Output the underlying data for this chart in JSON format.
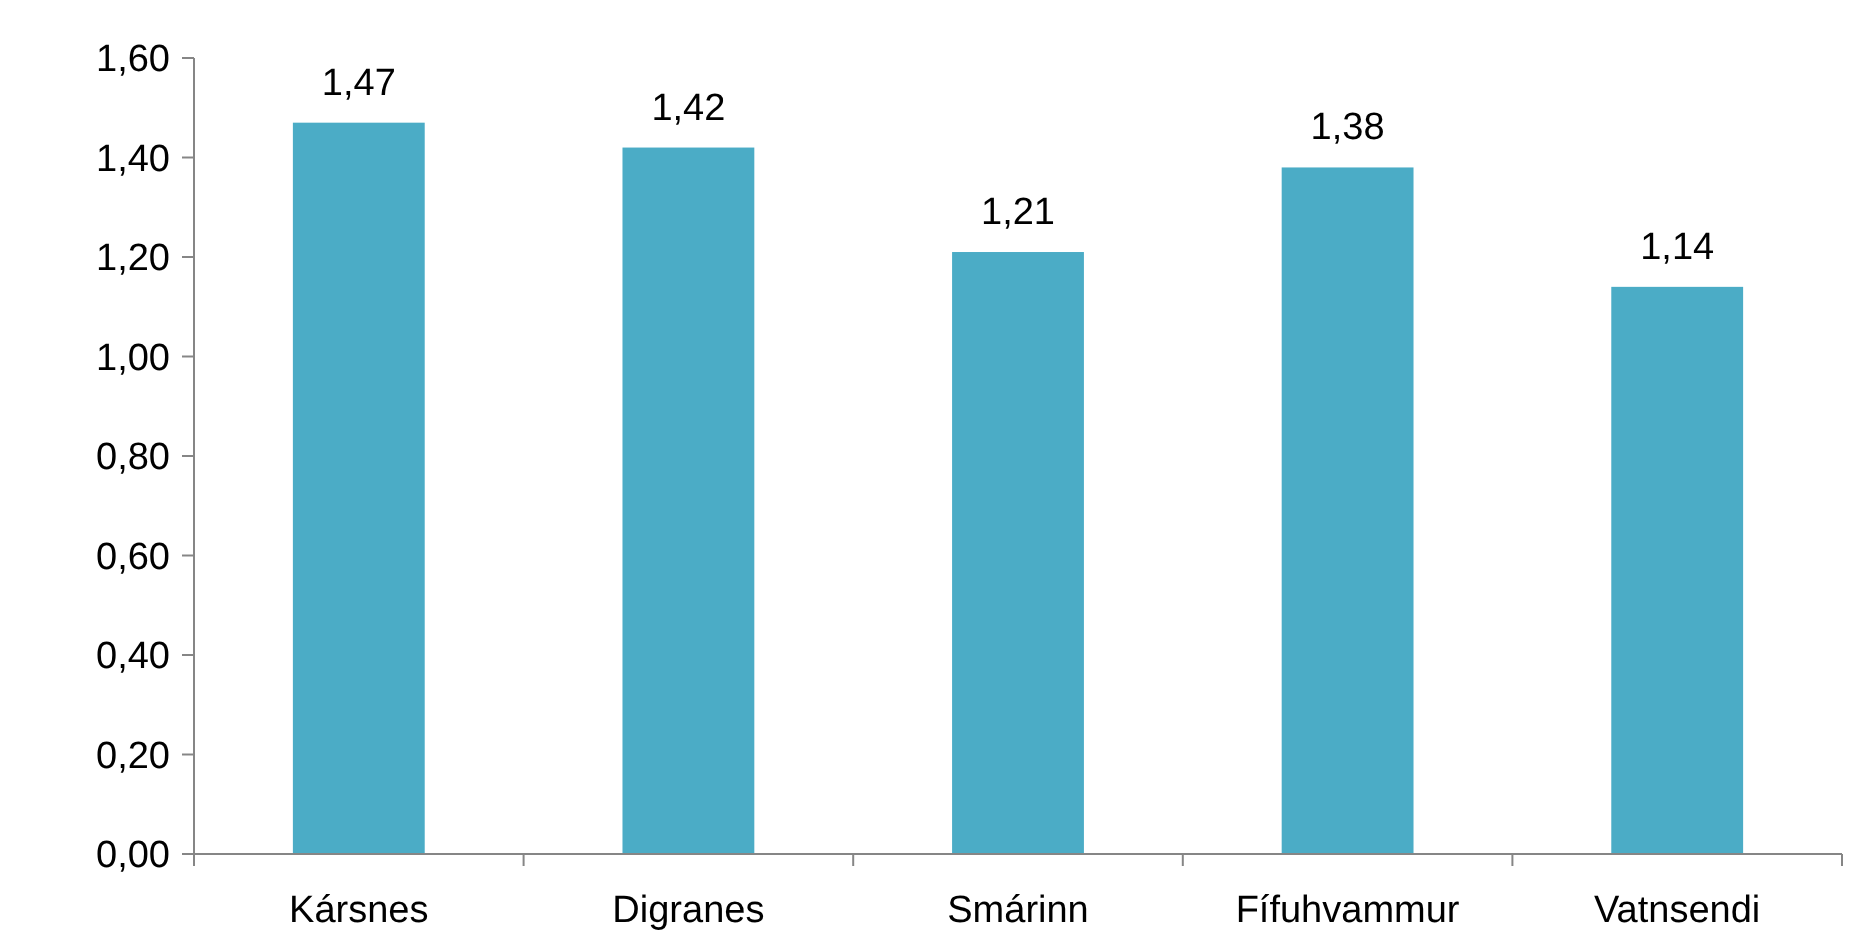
{
  "chart_data": {
    "type": "bar",
    "categories": [
      "Kársnes",
      "Digranes",
      "Smárinn",
      "Fífuhvammur",
      "Vatnsendi"
    ],
    "values": [
      1.47,
      1.42,
      1.21,
      1.38,
      1.14
    ],
    "value_labels": [
      "1,47",
      "1,42",
      "1,21",
      "1,38",
      "1,14"
    ],
    "color": "#4bacc6",
    "ylim": [
      0,
      1.6
    ],
    "yticks": [
      {
        "value": 0,
        "label": "0,00"
      },
      {
        "value": 0.2,
        "label": "0,20"
      },
      {
        "value": 0.4,
        "label": "0,40"
      },
      {
        "value": 0.6,
        "label": "0,60"
      },
      {
        "value": 0.8,
        "label": "0,80"
      },
      {
        "value": 1,
        "label": "1,00"
      },
      {
        "value": 1.2,
        "label": "1,20"
      },
      {
        "value": 1.4,
        "label": "1,40"
      },
      {
        "value": 1.6,
        "label": "1,60"
      }
    ],
    "grid": false
  }
}
